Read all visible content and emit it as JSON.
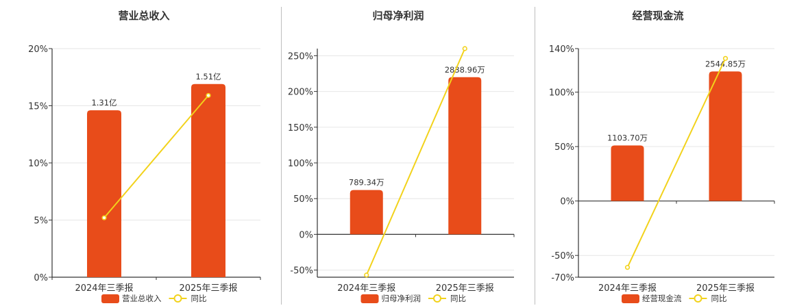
{
  "colors": {
    "bar": "#E84C1A",
    "line": "#F2D21B",
    "grid": "#e6e6e6",
    "axis": "#333333"
  },
  "legend": {
    "line_label": "同比"
  },
  "chart_data": [
    {
      "type": "bar",
      "title": "营业总收入",
      "categories": [
        "2024年三季报",
        "2025年三季报"
      ],
      "series": [
        {
          "name": "营业总收入",
          "type": "bar",
          "values": [
            14.6,
            16.9
          ],
          "labels": [
            "1.31亿",
            "1.51亿"
          ]
        },
        {
          "name": "同比",
          "type": "line",
          "values": [
            5.2,
            15.9
          ]
        }
      ],
      "yticks": [
        "0%",
        "5%",
        "10%",
        "15%",
        "20%"
      ],
      "ylim": [
        0,
        20
      ],
      "grid": true,
      "legend_position": "bottom"
    },
    {
      "type": "bar",
      "title": "归母净利润",
      "categories": [
        "2024年三季报",
        "2025年三季报"
      ],
      "series": [
        {
          "name": "归母净利润",
          "type": "bar",
          "values": [
            62,
            220
          ],
          "labels": [
            "789.34万",
            "2838.96万"
          ]
        },
        {
          "name": "同比",
          "type": "line",
          "values": [
            -57,
            260
          ]
        }
      ],
      "yticks": [
        "-50%",
        "0%",
        "50%",
        "100%",
        "150%",
        "200%",
        "250%"
      ],
      "ylim": [
        -60,
        260
      ],
      "grid": true,
      "legend_position": "bottom"
    },
    {
      "type": "bar",
      "title": "经营现金流",
      "categories": [
        "2024年三季报",
        "2025年三季报"
      ],
      "series": [
        {
          "name": "经营现金流",
          "type": "bar",
          "values": [
            51,
            119
          ],
          "labels": [
            "1103.70万",
            "2544.85万"
          ]
        },
        {
          "name": "同比",
          "type": "line",
          "values": [
            -61,
            131
          ]
        }
      ],
      "yticks": [
        "-70%",
        "-50%",
        "0%",
        "50%",
        "100%",
        "140%"
      ],
      "ytick_values": [
        -70,
        -50,
        0,
        50,
        100,
        140
      ],
      "ylim": [
        -70,
        140
      ],
      "grid": true,
      "legend_position": "bottom"
    }
  ]
}
